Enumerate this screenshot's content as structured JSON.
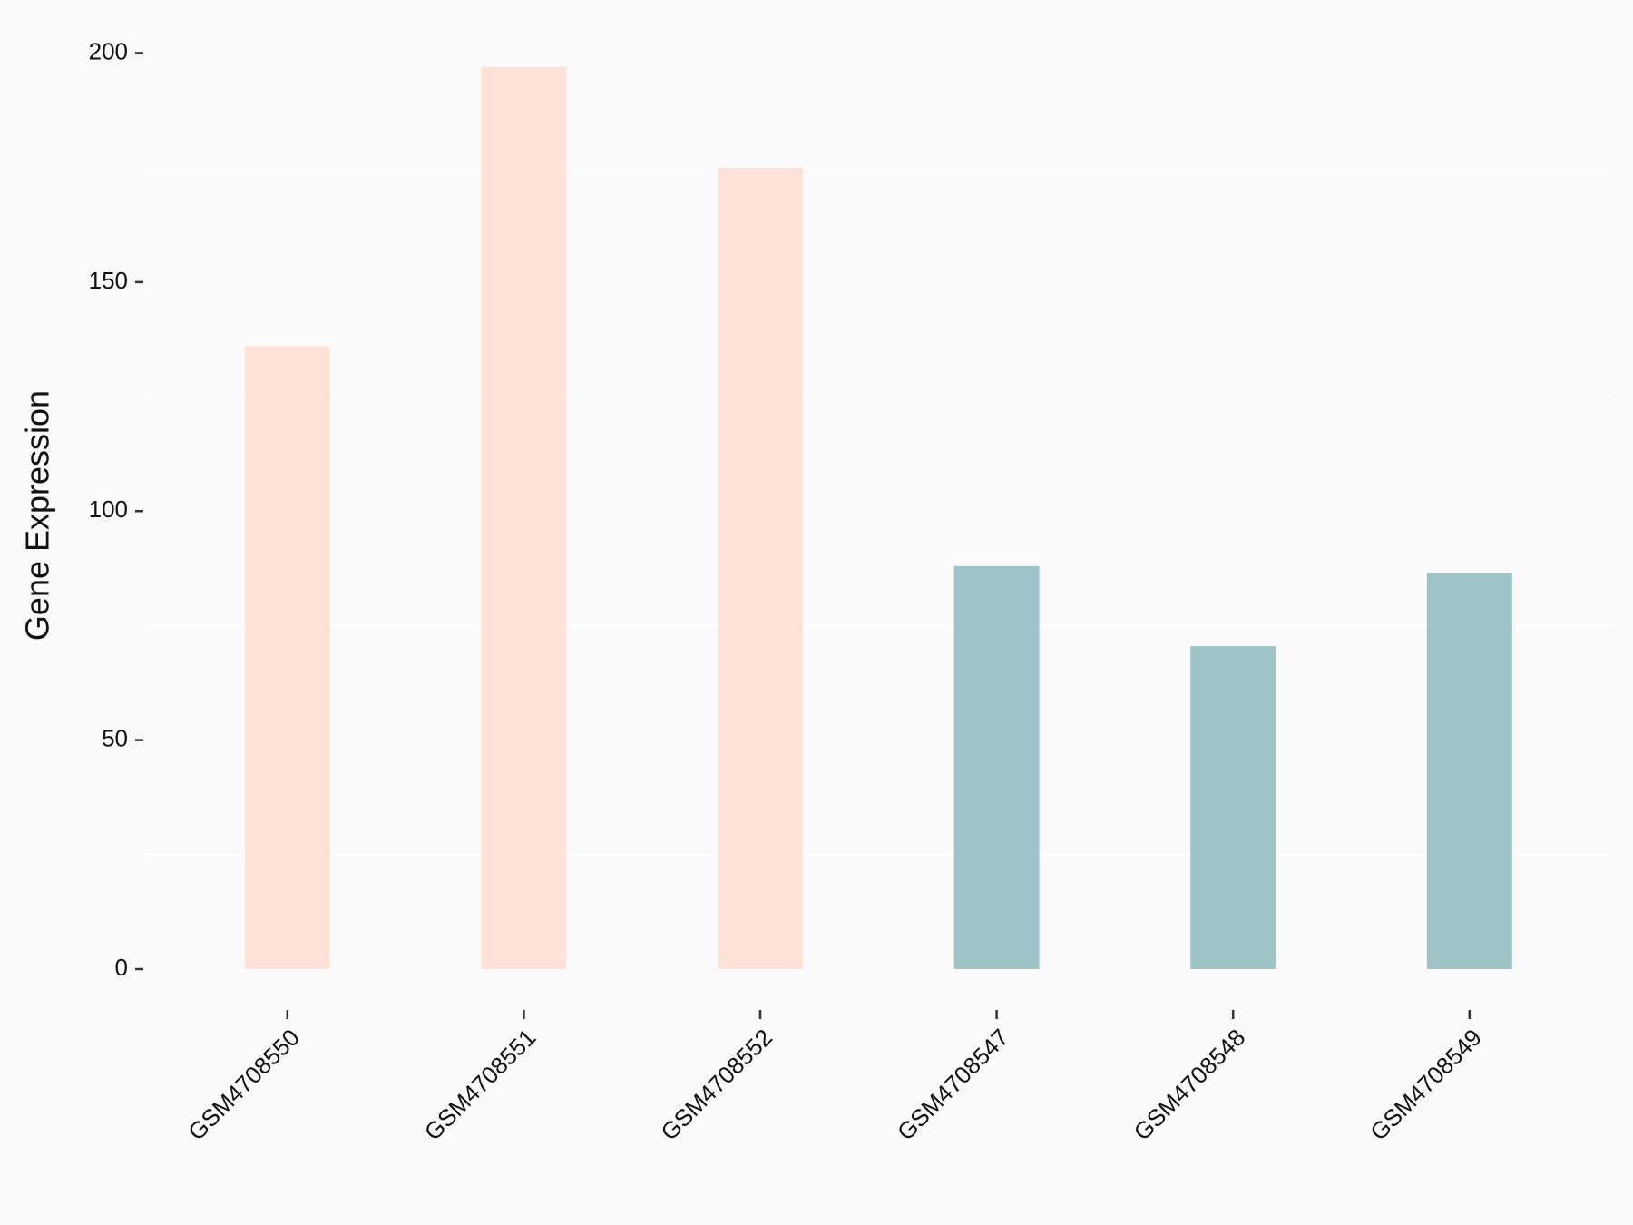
{
  "chart_data": {
    "type": "bar",
    "y_label": "Gene Expression",
    "categories": [
      "GSM4708550",
      "GSM4708551",
      "GSM4708552",
      "GSM4708547",
      "GSM4708548",
      "GSM4708549"
    ],
    "values": [
      136,
      197,
      175,
      88,
      70.5,
      86.5
    ],
    "colors": [
      "#ffe1d7",
      "#ffe1d7",
      "#ffe1d7",
      "#9ec4c8",
      "#9ec4c8",
      "#9ec4c8"
    ],
    "ylim": [
      0,
      200
    ],
    "yticks": [
      0,
      50,
      100,
      150,
      200
    ],
    "minor_grid": [
      25,
      75,
      125,
      175
    ]
  }
}
